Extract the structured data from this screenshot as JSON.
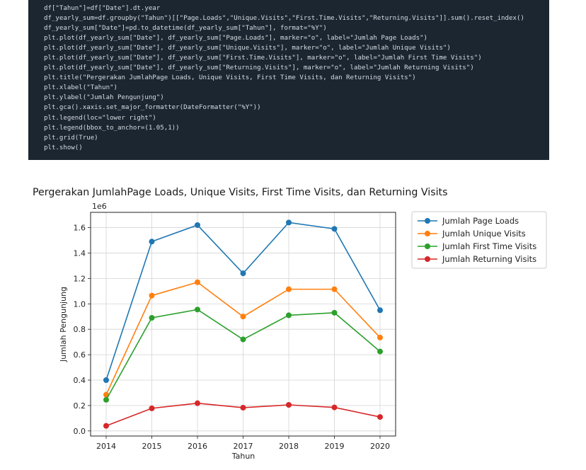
{
  "code": {
    "lines": [
      "df[\"Tahun\"]=df[\"Date\"].dt.year",
      "df_yearly_sum=df.groupby(\"Tahun\")[[\"Page.Loads\",\"Unique.Visits\",\"First.Time.Visits\",\"Returning.Visits\"]].sum().reset_index()",
      "df_yearly_sum[\"Date\"]=pd.to_datetime(df_yearly_sum[\"Tahun\"], format=\"%Y\")",
      "plt.plot(df_yearly_sum[\"Date\"], df_yearly_sum[\"Page.Loads\"], marker=\"o\", label=\"Jumlah Page Loads\")",
      "plt.plot(df_yearly_sum[\"Date\"], df_yearly_sum[\"Unique.Visits\"], marker=\"o\", label=\"Jumlah Unique Visits\")",
      "plt.plot(df_yearly_sum[\"Date\"], df_yearly_sum[\"First.Time.Visits\"], marker=\"o\", label=\"Jumlah First Time Visits\")",
      "plt.plot(df_yearly_sum[\"Date\"], df_yearly_sum[\"Returning.Visits\"], marker=\"o\", label=\"Jumlah Returning Visits\")",
      "plt.title(\"Pergerakan JumlahPage Loads, Unique Visits, First Time Visits, dan Returning Visits\")",
      "plt.xlabel(\"Tahun\")",
      "plt.ylabel(\"Jumlah Pengunjung\")",
      "plt.gca().xaxis.set_major_formatter(DateFormatter(\"%Y\"))",
      "plt.legend(loc=\"lower right\")",
      "plt.legend(bbox_to_anchor=(1.05,1))",
      "plt.grid(True)",
      "plt.show()"
    ]
  },
  "chart_data": {
    "type": "line",
    "title": "Pergerakan JumlahPage Loads, Unique Visits, First Time Visits, dan Returning Visits",
    "xlabel": "Tahun",
    "ylabel": "Jumlah Pengunjung",
    "y_scale_label": "1e6",
    "x": [
      "2014",
      "2015",
      "2016",
      "2017",
      "2018",
      "2019",
      "2020"
    ],
    "ylim": [
      -0.04,
      1.72
    ],
    "y_ticks": [
      "0.0",
      "0.2",
      "0.4",
      "0.6",
      "0.8",
      "1.0",
      "1.2",
      "1.4",
      "1.6"
    ],
    "grid": true,
    "legend_position": "outside-top-right",
    "series": [
      {
        "name": "Jumlah Page Loads",
        "color": "#1f77b4",
        "values": [
          0.4,
          1.49,
          1.62,
          1.24,
          1.64,
          1.59,
          0.95
        ]
      },
      {
        "name": "Jumlah Unique Visits",
        "color": "#ff7f0e",
        "values": [
          0.285,
          1.065,
          1.17,
          0.9,
          1.115,
          1.115,
          0.735
        ]
      },
      {
        "name": "Jumlah First Time Visits",
        "color": "#2ca02c",
        "values": [
          0.245,
          0.89,
          0.955,
          0.72,
          0.91,
          0.93,
          0.625
        ]
      },
      {
        "name": "Jumlah Returning Visits",
        "color": "#d62728",
        "values": [
          0.04,
          0.178,
          0.218,
          0.183,
          0.205,
          0.185,
          0.11
        ]
      }
    ]
  }
}
